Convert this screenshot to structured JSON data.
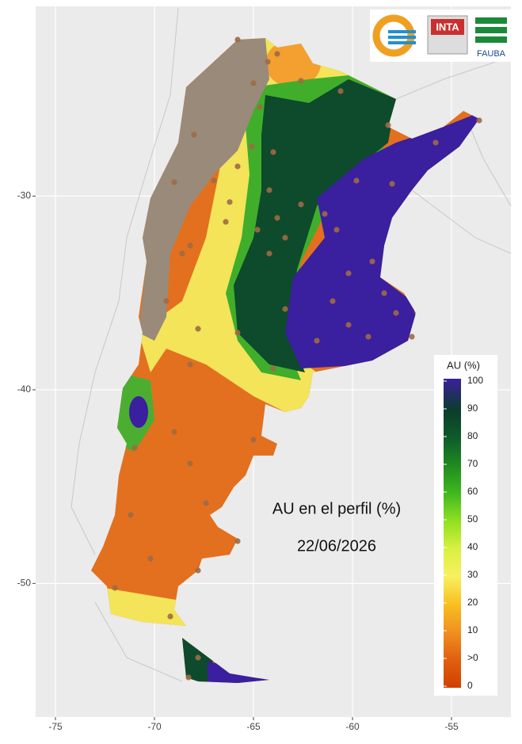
{
  "logos": {
    "inta": "INTA",
    "fauba": "FAUBA"
  },
  "annotation": {
    "title": "AU en el perfil (%)",
    "date": "22/06/2026"
  },
  "axes": {
    "xlim": [
      -76,
      -52
    ],
    "ylim": [
      -56.9,
      -20.2
    ],
    "xticks": [
      -75,
      -70,
      -65,
      -60,
      -55
    ],
    "yticks": [
      -30,
      -40,
      -50
    ]
  },
  "legend": {
    "title": "AU (%)",
    "labels": [
      "100",
      "90",
      "80",
      "70",
      "60",
      "50",
      "40",
      "30",
      "20",
      "10",
      ">0",
      "0"
    ]
  }
}
